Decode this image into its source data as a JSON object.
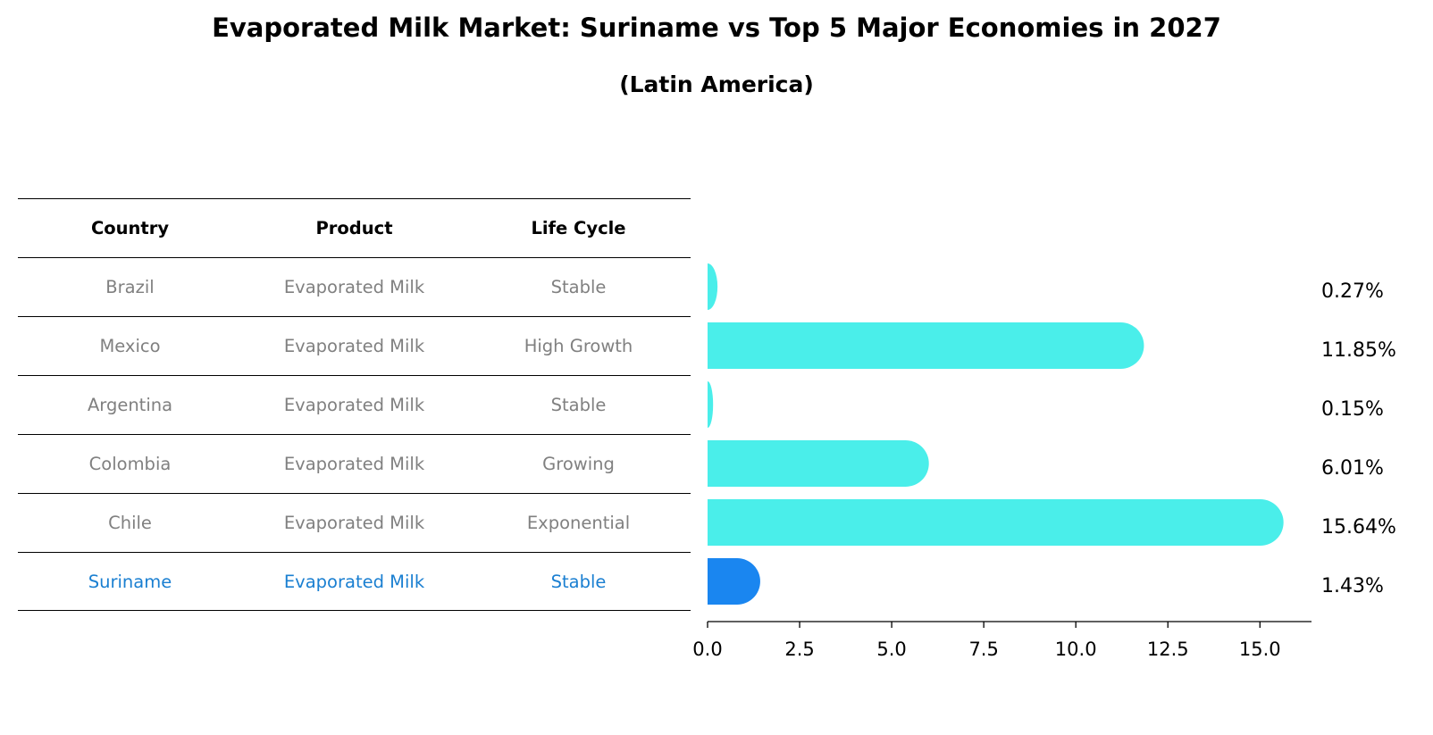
{
  "title": "Evaporated Milk Market: Suriname vs Top 5 Major Economies in 2027",
  "subtitle": "(Latin America)",
  "table": {
    "headers": [
      "Country",
      "Product",
      "Life Cycle"
    ],
    "rows": [
      {
        "country": "Brazil",
        "product": "Evaporated Milk",
        "life_cycle": "Stable"
      },
      {
        "country": "Mexico",
        "product": "Evaporated Milk",
        "life_cycle": "High Growth"
      },
      {
        "country": "Argentina",
        "product": "Evaporated Milk",
        "life_cycle": "Stable"
      },
      {
        "country": "Colombia",
        "product": "Evaporated Milk",
        "life_cycle": "Growing"
      },
      {
        "country": "Chile",
        "product": "Evaporated Milk",
        "life_cycle": "Exponential"
      },
      {
        "country": "Suriname",
        "product": "Evaporated Milk",
        "life_cycle": "Stable"
      }
    ],
    "highlight_row": 5
  },
  "chart_data": {
    "type": "bar",
    "orientation": "horizontal",
    "categories": [
      "Brazil",
      "Mexico",
      "Argentina",
      "Colombia",
      "Chile",
      "Suriname"
    ],
    "values": [
      0.27,
      11.85,
      0.15,
      6.01,
      15.64,
      1.43
    ],
    "value_labels": [
      "0.27%",
      "11.85%",
      "0.15%",
      "6.01%",
      "15.64%",
      "1.43%"
    ],
    "xlim": [
      0,
      16.4
    ],
    "xticks": [
      0.0,
      2.5,
      5.0,
      7.5,
      10.0,
      12.5,
      15.0
    ],
    "xtick_labels": [
      "0.0",
      "2.5",
      "5.0",
      "7.5",
      "10.0",
      "12.5",
      "15.0"
    ],
    "highlight_index": 5,
    "colors": {
      "bar": "#4aeeea",
      "highlight": "#1a86f0",
      "text": "#000000"
    },
    "grid": false
  }
}
